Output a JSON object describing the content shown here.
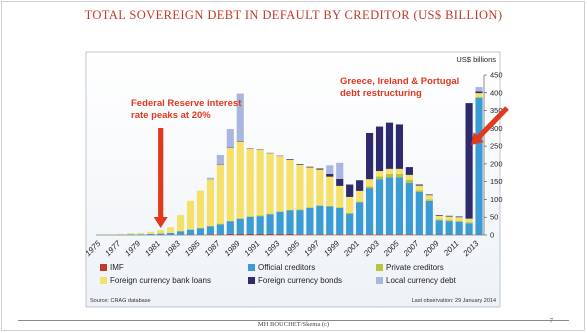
{
  "slide": {
    "title": "TOTAL SOVEREIGN DEBT IN DEFAULT BY CREDITOR (US$ BILLION)",
    "footer": "MH BOUCHET/Skema (c)",
    "page_number": "7"
  },
  "chart_data": {
    "type": "bar",
    "stacked": true,
    "title": "",
    "xlabel": "",
    "ylabel": "US$ billions",
    "ylim": [
      0,
      450
    ],
    "yticks": [
      0,
      50,
      100,
      150,
      200,
      250,
      300,
      350,
      400,
      450
    ],
    "grid": false,
    "legend_position": "bottom",
    "categories": [
      "1975",
      "1976",
      "1977",
      "1978",
      "1979",
      "1980",
      "1981",
      "1982",
      "1983",
      "1984",
      "1985",
      "1986",
      "1987",
      "1988",
      "1989",
      "1990",
      "1991",
      "1992",
      "1993",
      "1994",
      "1995",
      "1996",
      "1997",
      "1998",
      "1999",
      "2000",
      "2001",
      "2002",
      "2003",
      "2004",
      "2005",
      "2006",
      "2007",
      "2008",
      "2009",
      "2010",
      "2011",
      "2012",
      "2013"
    ],
    "xtick_labels": [
      "1975",
      "1977",
      "1979",
      "1981",
      "1983",
      "1985",
      "1987",
      "1989",
      "1991",
      "1993",
      "1995",
      "1997",
      "1999",
      "2001",
      "2003",
      "2005",
      "2007",
      "2009",
      "2011",
      "2013"
    ],
    "series": [
      {
        "name": "IMF",
        "color": "#c0392b",
        "values": [
          0,
          0,
          0,
          0,
          0,
          0,
          0,
          0,
          0,
          1,
          1,
          2,
          2,
          3,
          3,
          3,
          3,
          3,
          3,
          3,
          2,
          2,
          2,
          2,
          2,
          2,
          2,
          2,
          2,
          2,
          2,
          2,
          1,
          1,
          1,
          1,
          1,
          1,
          1
        ]
      },
      {
        "name": "Official creditors",
        "color": "#3a9bd5",
        "values": [
          1,
          1,
          1,
          2,
          2,
          3,
          4,
          6,
          10,
          14,
          18,
          22,
          28,
          35,
          42,
          48,
          50,
          55,
          62,
          66,
          68,
          74,
          80,
          78,
          74,
          58,
          90,
          130,
          155,
          160,
          160,
          145,
          120,
          95,
          40,
          38,
          36,
          32,
          385
        ]
      },
      {
        "name": "Private creditors",
        "color": "#b8c43a",
        "values": [
          0,
          0,
          0,
          0,
          0,
          0,
          0,
          0,
          1,
          1,
          1,
          2,
          2,
          2,
          2,
          2,
          2,
          2,
          2,
          2,
          2,
          2,
          2,
          2,
          2,
          2,
          2,
          5,
          8,
          10,
          10,
          8,
          5,
          4,
          3,
          3,
          3,
          3,
          3
        ]
      },
      {
        "name": "Foreign currency bank loans",
        "color": "#f5e06a",
        "values": [
          1,
          1,
          2,
          3,
          4,
          6,
          10,
          16,
          45,
          80,
          105,
          130,
          165,
          205,
          215,
          190,
          185,
          170,
          155,
          140,
          125,
          112,
          100,
          82,
          60,
          45,
          30,
          20,
          15,
          14,
          14,
          14,
          13,
          12,
          10,
          10,
          10,
          10,
          10
        ]
      },
      {
        "name": "Foreign currency bonds",
        "color": "#2e2a6e",
        "values": [
          0,
          0,
          0,
          0,
          0,
          0,
          0,
          0,
          0,
          0,
          0,
          0,
          1,
          1,
          1,
          1,
          1,
          1,
          1,
          2,
          2,
          2,
          3,
          8,
          20,
          35,
          30,
          130,
          125,
          130,
          125,
          22,
          3,
          2,
          2,
          2,
          2,
          325,
          5
        ]
      },
      {
        "name": "Local currency debt",
        "color": "#aab6e0",
        "values": [
          0,
          0,
          0,
          0,
          0,
          0,
          0,
          0,
          0,
          0,
          0,
          5,
          27,
          52,
          135,
          0,
          0,
          0,
          0,
          0,
          0,
          0,
          0,
          24,
          45,
          0,
          0,
          0,
          0,
          0,
          0,
          0,
          0,
          0,
          0,
          0,
          0,
          0,
          12
        ]
      }
    ],
    "annotations": [
      {
        "text": "Federal Reserve interest rate peaks at 20%",
        "points_to": "1981",
        "color": "#e0391f"
      },
      {
        "text": "Greece, Ireland & Portugal debt restructuring",
        "points_to": "2012",
        "color": "#e0391f"
      }
    ],
    "source": "Source: CRAG database",
    "note": "Last observation: 29 January 2014"
  }
}
